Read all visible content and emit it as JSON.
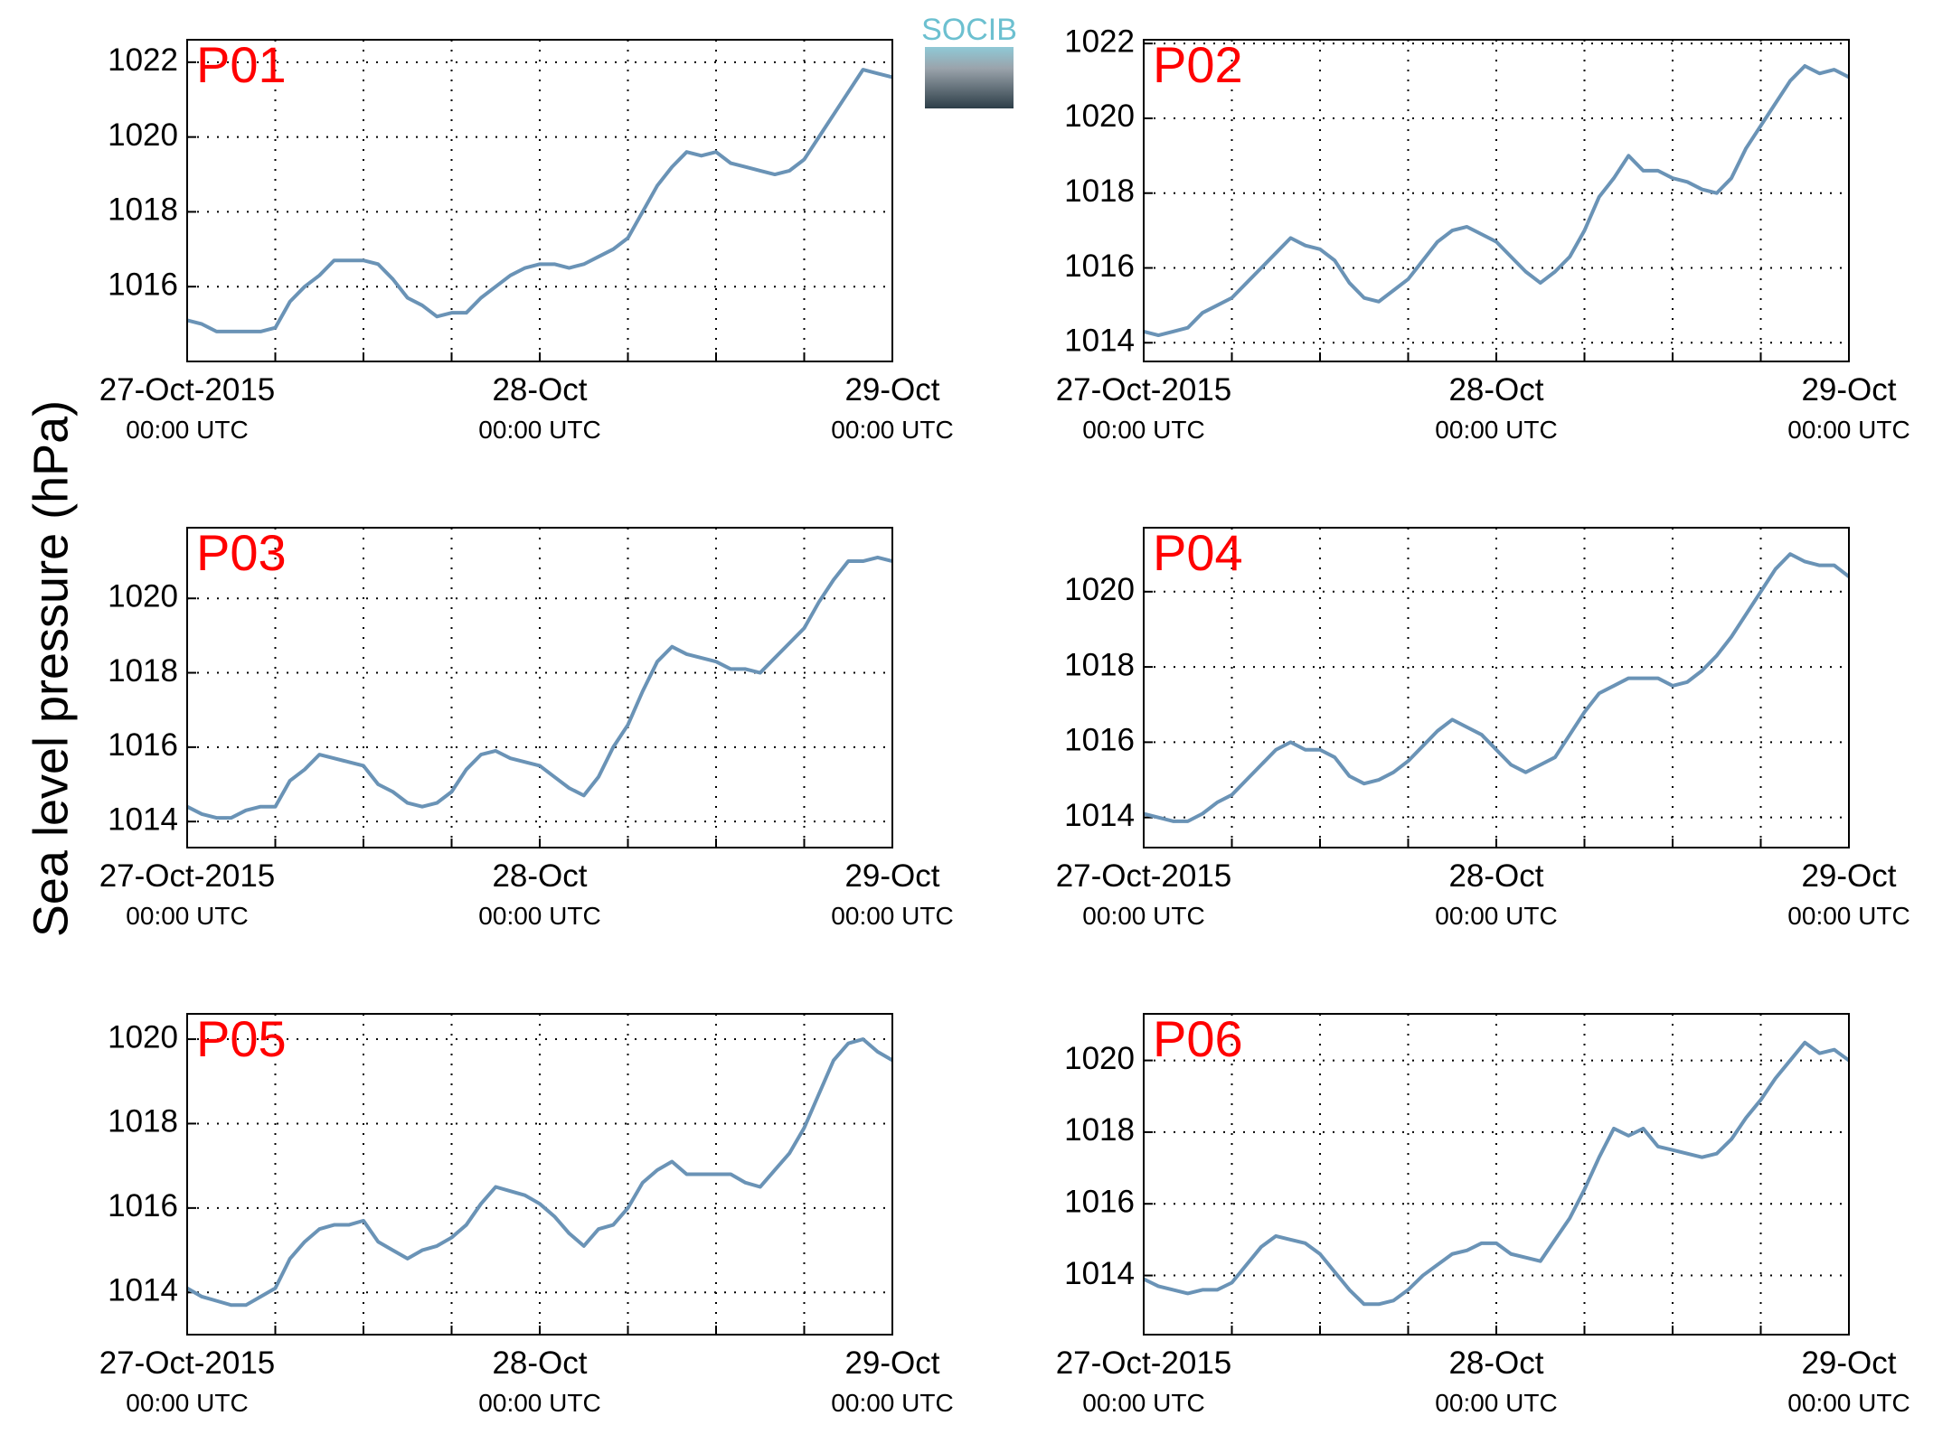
{
  "ylabel": "Sea level pressure (hPa)",
  "logo_text": "SOCIB",
  "chart_data": [
    {
      "type": "line",
      "title": "P01",
      "x": [
        0,
        1,
        2,
        3,
        4,
        5,
        6,
        7,
        8,
        9,
        10,
        11,
        12,
        13,
        14,
        15,
        16,
        17,
        18,
        19,
        20,
        21,
        22,
        23,
        24,
        25,
        26,
        27,
        28,
        29,
        30,
        31,
        32,
        33,
        34,
        35,
        36,
        37,
        38,
        39,
        40,
        41,
        42,
        43,
        44,
        45,
        46,
        47,
        48
      ],
      "series": [
        {
          "color": "#6a93b6",
          "values": [
            1015.1,
            1015.0,
            1014.8,
            1014.8,
            1014.8,
            1014.8,
            1014.9,
            1015.6,
            1016.0,
            1016.3,
            1016.7,
            1016.7,
            1016.7,
            1016.6,
            1016.2,
            1015.7,
            1015.5,
            1015.2,
            1015.3,
            1015.3,
            1015.7,
            1016.0,
            1016.3,
            1016.5,
            1016.6,
            1016.6,
            1016.5,
            1016.6,
            1016.8,
            1017.0,
            1017.3,
            1018.0,
            1018.7,
            1019.2,
            1019.6,
            1019.5,
            1019.6,
            1019.3,
            1019.2,
            1019.1,
            1019.0,
            1019.1,
            1019.4,
            1020.0,
            1020.6,
            1021.2,
            1021.8,
            1021.7,
            1021.6
          ]
        }
      ],
      "xlim": [
        0,
        48
      ],
      "xticks": [
        {
          "value": 0,
          "label": "27-Oct-2015\n00:00 UTC"
        },
        {
          "value": 24,
          "label": "28-Oct\n00:00 UTC"
        },
        {
          "value": 48,
          "label": "29-Oct\n00:00 UTC"
        }
      ],
      "xminor": [
        6,
        12,
        18,
        30,
        36,
        42
      ],
      "ylim": [
        1014,
        1022.6
      ],
      "yticks": [
        1016,
        1018,
        1020,
        1022
      ],
      "grid": true
    },
    {
      "type": "line",
      "title": "P02",
      "x": [
        0,
        1,
        2,
        3,
        4,
        5,
        6,
        7,
        8,
        9,
        10,
        11,
        12,
        13,
        14,
        15,
        16,
        17,
        18,
        19,
        20,
        21,
        22,
        23,
        24,
        25,
        26,
        27,
        28,
        29,
        30,
        31,
        32,
        33,
        34,
        35,
        36,
        37,
        38,
        39,
        40,
        41,
        42,
        43,
        44,
        45,
        46,
        47,
        48
      ],
      "series": [
        {
          "color": "#6a93b6",
          "values": [
            1014.3,
            1014.2,
            1014.3,
            1014.4,
            1014.8,
            1015.0,
            1015.2,
            1015.6,
            1016.0,
            1016.4,
            1016.8,
            1016.6,
            1016.5,
            1016.2,
            1015.6,
            1015.2,
            1015.1,
            1015.4,
            1015.7,
            1016.2,
            1016.7,
            1017.0,
            1017.1,
            1016.9,
            1016.7,
            1016.3,
            1015.9,
            1015.6,
            1015.9,
            1016.3,
            1017.0,
            1017.9,
            1018.4,
            1019.0,
            1018.6,
            1018.6,
            1018.4,
            1018.3,
            1018.1,
            1018.0,
            1018.4,
            1019.2,
            1019.8,
            1020.4,
            1021.0,
            1021.4,
            1021.2,
            1021.3,
            1021.1
          ]
        }
      ],
      "xlim": [
        0,
        48
      ],
      "xticks": [
        {
          "value": 0,
          "label": "27-Oct-2015\n00:00 UTC"
        },
        {
          "value": 24,
          "label": "28-Oct\n00:00 UTC"
        },
        {
          "value": 48,
          "label": "29-Oct\n00:00 UTC"
        }
      ],
      "xminor": [
        6,
        12,
        18,
        30,
        36,
        42
      ],
      "ylim": [
        1013.5,
        1022.1
      ],
      "yticks": [
        1014,
        1016,
        1018,
        1020,
        1022
      ],
      "grid": true
    },
    {
      "type": "line",
      "title": "P03",
      "x": [
        0,
        1,
        2,
        3,
        4,
        5,
        6,
        7,
        8,
        9,
        10,
        11,
        12,
        13,
        14,
        15,
        16,
        17,
        18,
        19,
        20,
        21,
        22,
        23,
        24,
        25,
        26,
        27,
        28,
        29,
        30,
        31,
        32,
        33,
        34,
        35,
        36,
        37,
        38,
        39,
        40,
        41,
        42,
        43,
        44,
        45,
        46,
        47,
        48
      ],
      "series": [
        {
          "color": "#6a93b6",
          "values": [
            1014.4,
            1014.2,
            1014.1,
            1014.1,
            1014.3,
            1014.4,
            1014.4,
            1015.1,
            1015.4,
            1015.8,
            1015.7,
            1015.6,
            1015.5,
            1015.0,
            1014.8,
            1014.5,
            1014.4,
            1014.5,
            1014.8,
            1015.4,
            1015.8,
            1015.9,
            1015.7,
            1015.6,
            1015.5,
            1015.2,
            1014.9,
            1014.7,
            1015.2,
            1016.0,
            1016.6,
            1017.5,
            1018.3,
            1018.7,
            1018.5,
            1018.4,
            1018.3,
            1018.1,
            1018.1,
            1018.0,
            1018.4,
            1018.8,
            1019.2,
            1019.9,
            1020.5,
            1021.0,
            1021.0,
            1021.1,
            1021.0
          ]
        }
      ],
      "xlim": [
        0,
        48
      ],
      "xticks": [
        {
          "value": 0,
          "label": "27-Oct-2015\n00:00 UTC"
        },
        {
          "value": 24,
          "label": "28-Oct\n00:00 UTC"
        },
        {
          "value": 48,
          "label": "29-Oct\n00:00 UTC"
        }
      ],
      "xminor": [
        6,
        12,
        18,
        30,
        36,
        42
      ],
      "ylim": [
        1013.3,
        1021.9
      ],
      "yticks": [
        1014,
        1016,
        1018,
        1020
      ],
      "grid": true
    },
    {
      "type": "line",
      "title": "P04",
      "x": [
        0,
        1,
        2,
        3,
        4,
        5,
        6,
        7,
        8,
        9,
        10,
        11,
        12,
        13,
        14,
        15,
        16,
        17,
        18,
        19,
        20,
        21,
        22,
        23,
        24,
        25,
        26,
        27,
        28,
        29,
        30,
        31,
        32,
        33,
        34,
        35,
        36,
        37,
        38,
        39,
        40,
        41,
        42,
        43,
        44,
        45,
        46,
        47,
        48
      ],
      "series": [
        {
          "color": "#6a93b6",
          "values": [
            1014.1,
            1014.0,
            1013.9,
            1013.9,
            1014.1,
            1014.4,
            1014.6,
            1015.0,
            1015.4,
            1015.8,
            1016.0,
            1015.8,
            1015.8,
            1015.6,
            1015.1,
            1014.9,
            1015.0,
            1015.2,
            1015.5,
            1015.9,
            1016.3,
            1016.6,
            1016.4,
            1016.2,
            1015.8,
            1015.4,
            1015.2,
            1015.4,
            1015.6,
            1016.2,
            1016.8,
            1017.3,
            1017.5,
            1017.7,
            1017.7,
            1017.7,
            1017.5,
            1017.6,
            1017.9,
            1018.3,
            1018.8,
            1019.4,
            1020.0,
            1020.6,
            1021.0,
            1020.8,
            1020.7,
            1020.7,
            1020.4
          ]
        }
      ],
      "xlim": [
        0,
        48
      ],
      "xticks": [
        {
          "value": 0,
          "label": "27-Oct-2015\n00:00 UTC"
        },
        {
          "value": 24,
          "label": "28-Oct\n00:00 UTC"
        },
        {
          "value": 48,
          "label": "29-Oct\n00:00 UTC"
        }
      ],
      "xminor": [
        6,
        12,
        18,
        30,
        36,
        42
      ],
      "ylim": [
        1013.2,
        1021.7
      ],
      "yticks": [
        1014,
        1016,
        1018,
        1020
      ],
      "grid": true
    },
    {
      "type": "line",
      "title": "P05",
      "x": [
        0,
        1,
        2,
        3,
        4,
        5,
        6,
        7,
        8,
        9,
        10,
        11,
        12,
        13,
        14,
        15,
        16,
        17,
        18,
        19,
        20,
        21,
        22,
        23,
        24,
        25,
        26,
        27,
        28,
        29,
        30,
        31,
        32,
        33,
        34,
        35,
        36,
        37,
        38,
        39,
        40,
        41,
        42,
        43,
        44,
        45,
        46,
        47,
        48
      ],
      "series": [
        {
          "color": "#6a93b6",
          "values": [
            1014.1,
            1013.9,
            1013.8,
            1013.7,
            1013.7,
            1013.9,
            1014.1,
            1014.8,
            1015.2,
            1015.5,
            1015.6,
            1015.6,
            1015.7,
            1015.2,
            1015.0,
            1014.8,
            1015.0,
            1015.1,
            1015.3,
            1015.6,
            1016.1,
            1016.5,
            1016.4,
            1016.3,
            1016.1,
            1015.8,
            1015.4,
            1015.1,
            1015.5,
            1015.6,
            1016.0,
            1016.6,
            1016.9,
            1017.1,
            1016.8,
            1016.8,
            1016.8,
            1016.8,
            1016.6,
            1016.5,
            1016.9,
            1017.3,
            1017.9,
            1018.7,
            1019.5,
            1019.9,
            1020.0,
            1019.7,
            1019.5
          ]
        }
      ],
      "xlim": [
        0,
        48
      ],
      "xticks": [
        {
          "value": 0,
          "label": "27-Oct-2015\n00:00 UTC"
        },
        {
          "value": 24,
          "label": "28-Oct\n00:00 UTC"
        },
        {
          "value": 48,
          "label": "29-Oct\n00:00 UTC"
        }
      ],
      "xminor": [
        6,
        12,
        18,
        30,
        36,
        42
      ],
      "ylim": [
        1013.0,
        1020.6
      ],
      "yticks": [
        1014,
        1016,
        1018,
        1020
      ],
      "grid": true
    },
    {
      "type": "line",
      "title": "P06",
      "x": [
        0,
        1,
        2,
        3,
        4,
        5,
        6,
        7,
        8,
        9,
        10,
        11,
        12,
        13,
        14,
        15,
        16,
        17,
        18,
        19,
        20,
        21,
        22,
        23,
        24,
        25,
        26,
        27,
        28,
        29,
        30,
        31,
        32,
        33,
        34,
        35,
        36,
        37,
        38,
        39,
        40,
        41,
        42,
        43,
        44,
        45,
        46,
        47,
        48
      ],
      "series": [
        {
          "color": "#6a93b6",
          "values": [
            1013.9,
            1013.7,
            1013.6,
            1013.5,
            1013.6,
            1013.6,
            1013.8,
            1014.3,
            1014.8,
            1015.1,
            1015.0,
            1014.9,
            1014.6,
            1014.1,
            1013.6,
            1013.2,
            1013.2,
            1013.3,
            1013.6,
            1014.0,
            1014.3,
            1014.6,
            1014.7,
            1014.9,
            1014.9,
            1014.6,
            1014.5,
            1014.4,
            1015.0,
            1015.6,
            1016.4,
            1017.3,
            1018.1,
            1017.9,
            1018.1,
            1017.6,
            1017.5,
            1017.4,
            1017.3,
            1017.4,
            1017.8,
            1018.4,
            1018.9,
            1019.5,
            1020.0,
            1020.5,
            1020.2,
            1020.3,
            1020.0
          ]
        }
      ],
      "xlim": [
        0,
        48
      ],
      "xticks": [
        {
          "value": 0,
          "label": "27-Oct-2015\n00:00 UTC"
        },
        {
          "value": 24,
          "label": "28-Oct\n00:00 UTC"
        },
        {
          "value": 48,
          "label": "29-Oct\n00:00 UTC"
        }
      ],
      "xminor": [
        6,
        12,
        18,
        30,
        36,
        42
      ],
      "ylim": [
        1012.35,
        1021.3
      ],
      "yticks": [
        1014,
        1016,
        1018,
        1020
      ],
      "grid": true
    }
  ]
}
